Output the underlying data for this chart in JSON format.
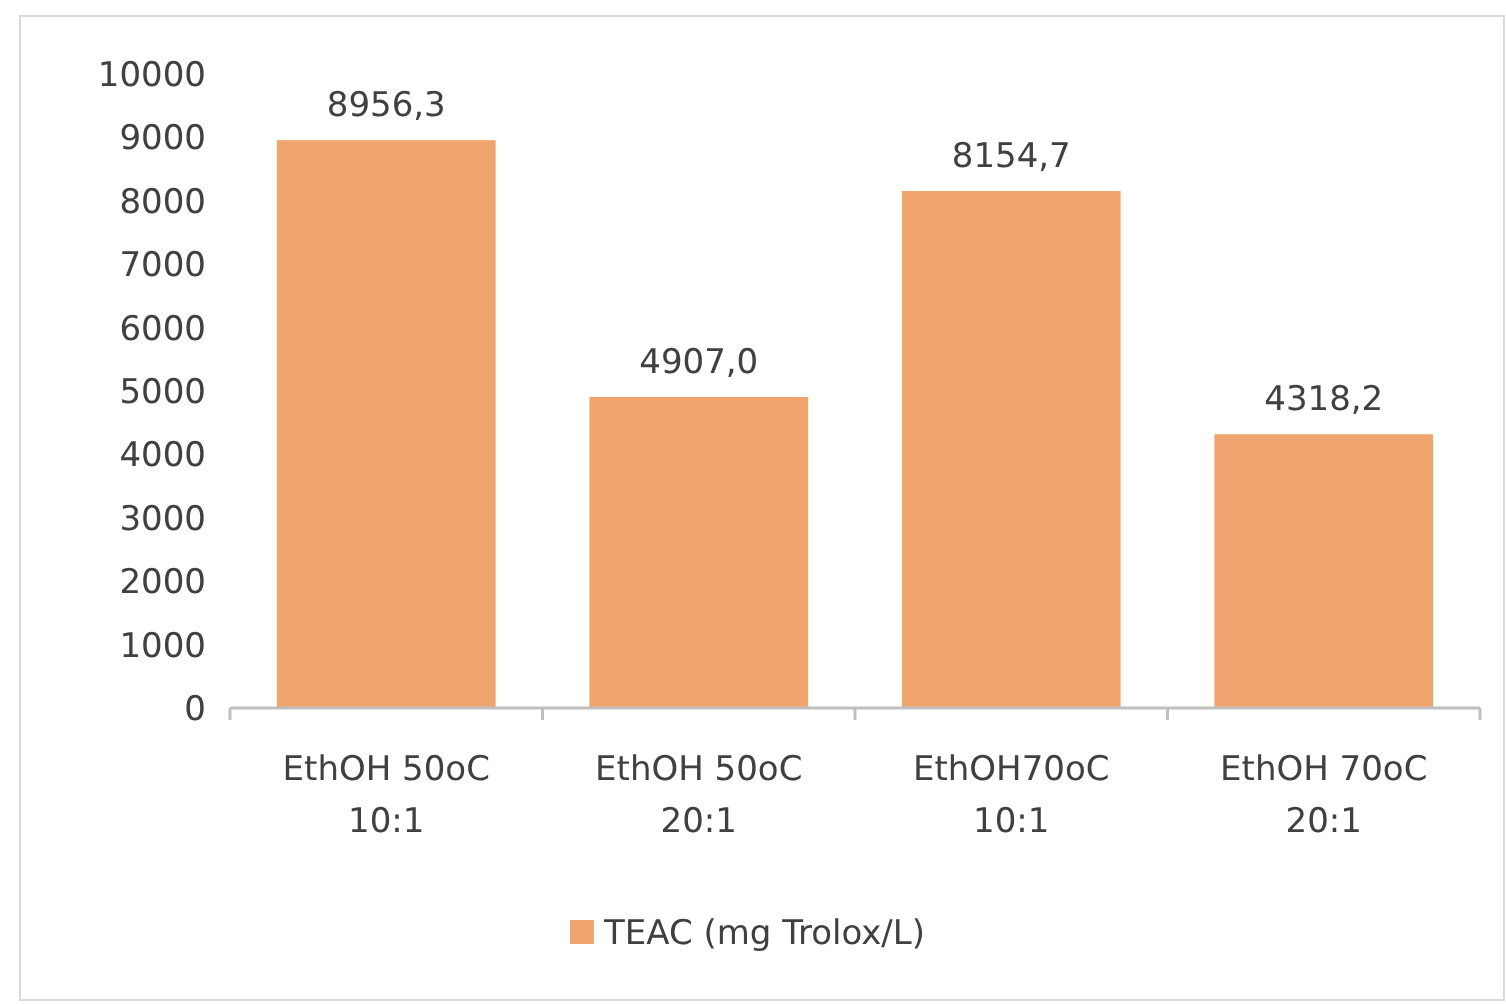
{
  "chart_data": {
    "type": "bar",
    "categories": [
      "EthOH 50oC 10:1",
      "EthOH 50oC 20:1",
      "EthOH70oC 10:1",
      "EthOH 70oC 20:1"
    ],
    "series": [
      {
        "name": "TEAC (mg Trolox/L)",
        "color": "#f0a56f",
        "values": [
          8956.3,
          4907.0,
          8154.7,
          4318.2
        ],
        "value_labels": [
          "8956,3",
          "4907,0",
          "8154,7",
          "4318,2"
        ]
      }
    ],
    "ylim": [
      0,
      10000
    ],
    "yticks": [
      0,
      1000,
      2000,
      3000,
      4000,
      5000,
      6000,
      7000,
      8000,
      9000,
      10000
    ],
    "grid": false,
    "legend": "bottom"
  }
}
